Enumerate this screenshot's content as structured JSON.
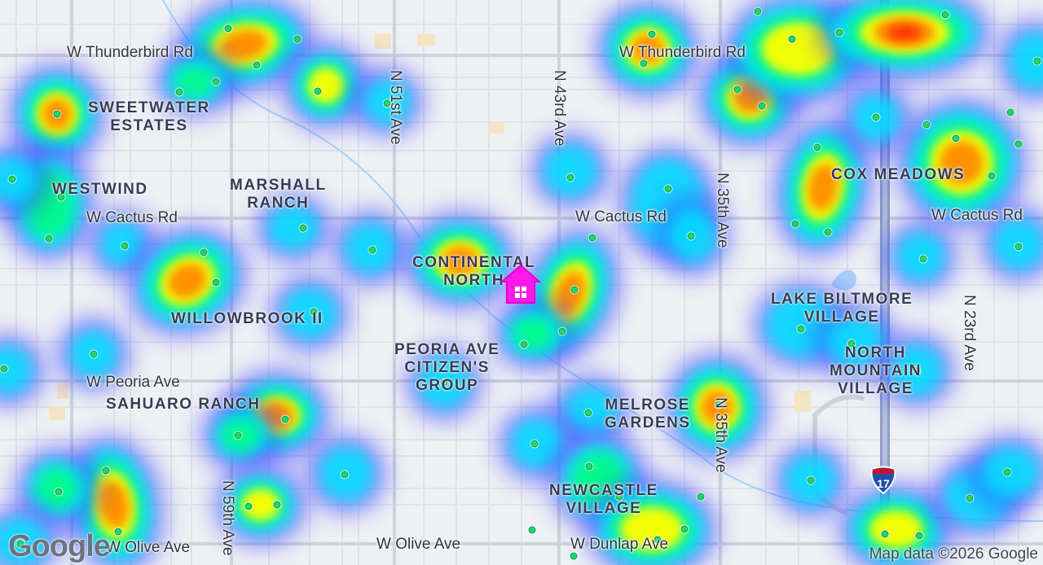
{
  "map": {
    "roads": [
      {
        "name": "W Thunderbird Rd",
        "id": "thunderbird-west"
      },
      {
        "name": "W Thunderbird Rd",
        "id": "thunderbird-east"
      },
      {
        "name": "W Cactus Rd",
        "id": "cactus-west"
      },
      {
        "name": "W Cactus Rd",
        "id": "cactus-mid"
      },
      {
        "name": "W Cactus Rd",
        "id": "cactus-east"
      },
      {
        "name": "W Peoria Ave",
        "id": "peoria-west"
      },
      {
        "name": "W Olive Ave",
        "id": "olive-west"
      },
      {
        "name": "W Olive Ave",
        "id": "olive-mid"
      },
      {
        "name": "W Dunlap Ave",
        "id": "dunlap"
      },
      {
        "name": "N 51st Ave",
        "id": "n51"
      },
      {
        "name": "N 43rd Ave",
        "id": "n43"
      },
      {
        "name": "N 35th Ave",
        "id": "n35-north"
      },
      {
        "name": "N 35th Ave",
        "id": "n35-south"
      },
      {
        "name": "N 59th Ave",
        "id": "n59"
      },
      {
        "name": "N 23rd Ave",
        "id": "n23"
      }
    ],
    "neighborhoods": [
      {
        "name": "SWEETWATER\nESTATES",
        "id": "sweetwater"
      },
      {
        "name": "WESTWIND",
        "id": "westwind"
      },
      {
        "name": "MARSHALL\nRANCH",
        "id": "marshall"
      },
      {
        "name": "CONTINENTAL\nNORTH",
        "id": "continental"
      },
      {
        "name": "WILLOWBROOK II",
        "id": "willowbrook"
      },
      {
        "name": "PEORIA AVE\nCITIZEN'S\nGROUP",
        "id": "peoria-citizens"
      },
      {
        "name": "SAHUARO RANCH",
        "id": "sahuaro"
      },
      {
        "name": "MELROSE\nGARDENS",
        "id": "melrose"
      },
      {
        "name": "NEWCASTLE\nVILLAGE",
        "id": "newcastle"
      },
      {
        "name": "COX MEADOWS",
        "id": "cox"
      },
      {
        "name": "LAKE BILTMORE\nVILLAGE",
        "id": "lake-biltmore"
      },
      {
        "name": "NORTH\nMOUNTAIN\nVILLAGE",
        "id": "north-mountain"
      }
    ],
    "interstate_shield": "17",
    "home_marker": "home-icon",
    "provider_logo": "Google",
    "attribution": "Map data ©2026 Google",
    "heatmap_colors": [
      "#3c3cff",
      "#00e5ff",
      "#00ff80",
      "#ffff00",
      "#ff8c00",
      "#ff2a00"
    ],
    "marker_color": "#1ed66a",
    "home_color": "#ff19e8"
  }
}
